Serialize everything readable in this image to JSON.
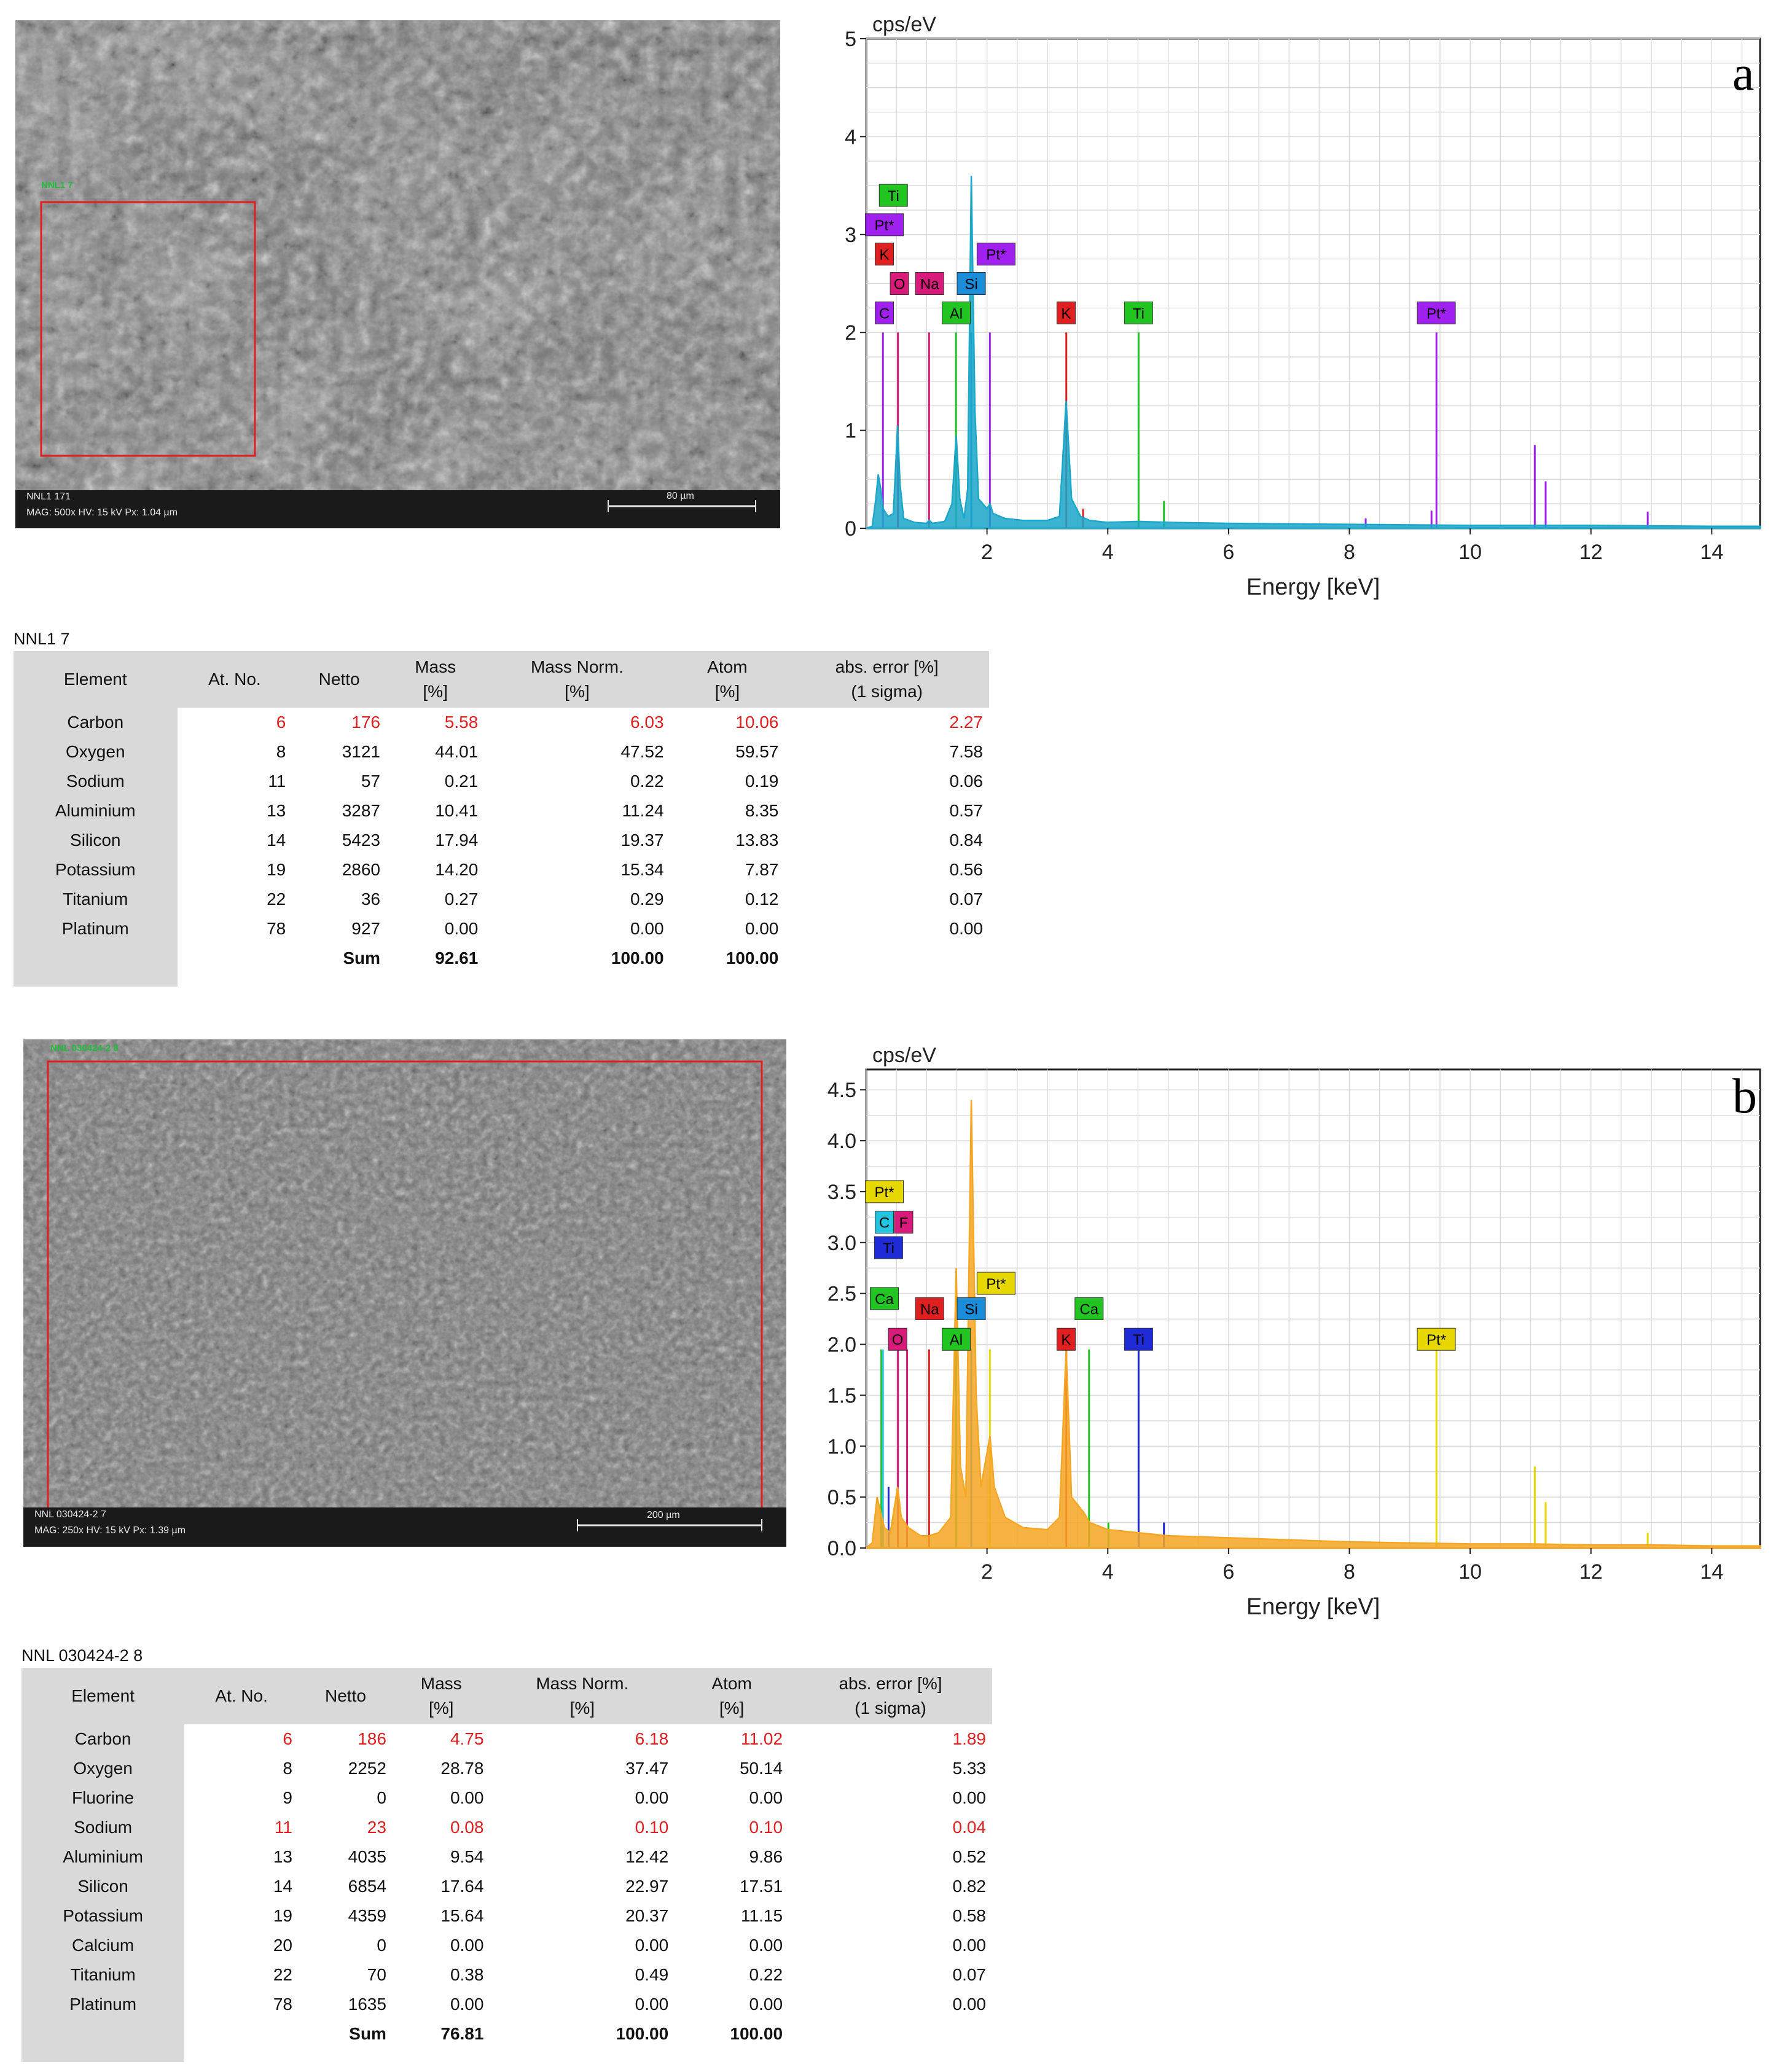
{
  "panel_a": {
    "letter": "a",
    "sem": {
      "roi_label": "NNL1 7",
      "info_line1": "NNL1 171",
      "info_line2": "MAG: 500x   HV: 15 kV   Px: 1.04 µm",
      "scale_label": "80 µm"
    },
    "table": {
      "title": "NNL1 7",
      "headers": [
        "Element",
        "At. No.",
        "Netto",
        "Mass\n[%]",
        "Mass Norm.\n[%]",
        "Atom\n[%]",
        "abs. error [%]\n(1 sigma)"
      ],
      "rows": [
        {
          "element": "Carbon",
          "at_no": "6",
          "netto": "176",
          "mass": "5.58",
          "mass_norm": "6.03",
          "atom": "10.06",
          "error": "2.27",
          "flag": "red"
        },
        {
          "element": "Oxygen",
          "at_no": "8",
          "netto": "3121",
          "mass": "44.01",
          "mass_norm": "47.52",
          "atom": "59.57",
          "error": "7.58",
          "flag": ""
        },
        {
          "element": "Sodium",
          "at_no": "11",
          "netto": "57",
          "mass": "0.21",
          "mass_norm": "0.22",
          "atom": "0.19",
          "error": "0.06",
          "flag": ""
        },
        {
          "element": "Aluminium",
          "at_no": "13",
          "netto": "3287",
          "mass": "10.41",
          "mass_norm": "11.24",
          "atom": "8.35",
          "error": "0.57",
          "flag": ""
        },
        {
          "element": "Silicon",
          "at_no": "14",
          "netto": "5423",
          "mass": "17.94",
          "mass_norm": "19.37",
          "atom": "13.83",
          "error": "0.84",
          "flag": ""
        },
        {
          "element": "Potassium",
          "at_no": "19",
          "netto": "2860",
          "mass": "14.20",
          "mass_norm": "15.34",
          "atom": "7.87",
          "error": "0.56",
          "flag": ""
        },
        {
          "element": "Titanium",
          "at_no": "22",
          "netto": "36",
          "mass": "0.27",
          "mass_norm": "0.29",
          "atom": "0.12",
          "error": "0.07",
          "flag": ""
        },
        {
          "element": "Platinum",
          "at_no": "78",
          "netto": "927",
          "mass": "0.00",
          "mass_norm": "0.00",
          "atom": "0.00",
          "error": "0.00",
          "flag": ""
        }
      ],
      "sum": {
        "label": "Sum",
        "mass": "92.61",
        "mass_norm": "100.00",
        "atom": "100.00"
      }
    }
  },
  "panel_b": {
    "letter": "b",
    "sem": {
      "roi_label": "NNL 030424-2 8",
      "info_line1": "NNL 030424-2 7",
      "info_line2": "MAG: 250x   HV: 15 kV   Px: 1.39 µm",
      "scale_label": "200 µm"
    },
    "table": {
      "title": "NNL 030424-2 8",
      "headers": [
        "Element",
        "At. No.",
        "Netto",
        "Mass\n[%]",
        "Mass Norm.\n[%]",
        "Atom\n[%]",
        "abs. error [%]\n(1 sigma)"
      ],
      "rows": [
        {
          "element": "Carbon",
          "at_no": "6",
          "netto": "186",
          "mass": "4.75",
          "mass_norm": "6.18",
          "atom": "11.02",
          "error": "1.89",
          "flag": "red"
        },
        {
          "element": "Oxygen",
          "at_no": "8",
          "netto": "2252",
          "mass": "28.78",
          "mass_norm": "37.47",
          "atom": "50.14",
          "error": "5.33",
          "flag": ""
        },
        {
          "element": "Fluorine",
          "at_no": "9",
          "netto": "0",
          "mass": "0.00",
          "mass_norm": "0.00",
          "atom": "0.00",
          "error": "0.00",
          "flag": ""
        },
        {
          "element": "Sodium",
          "at_no": "11",
          "netto": "23",
          "mass": "0.08",
          "mass_norm": "0.10",
          "atom": "0.10",
          "error": "0.04",
          "flag": "red"
        },
        {
          "element": "Aluminium",
          "at_no": "13",
          "netto": "4035",
          "mass": "9.54",
          "mass_norm": "12.42",
          "atom": "9.86",
          "error": "0.52",
          "flag": ""
        },
        {
          "element": "Silicon",
          "at_no": "14",
          "netto": "6854",
          "mass": "17.64",
          "mass_norm": "22.97",
          "atom": "17.51",
          "error": "0.82",
          "flag": ""
        },
        {
          "element": "Potassium",
          "at_no": "19",
          "netto": "4359",
          "mass": "15.64",
          "mass_norm": "20.37",
          "atom": "11.15",
          "error": "0.58",
          "flag": ""
        },
        {
          "element": "Calcium",
          "at_no": "20",
          "netto": "0",
          "mass": "0.00",
          "mass_norm": "0.00",
          "atom": "0.00",
          "error": "0.00",
          "flag": ""
        },
        {
          "element": "Titanium",
          "at_no": "22",
          "netto": "70",
          "mass": "0.38",
          "mass_norm": "0.49",
          "atom": "0.22",
          "error": "0.07",
          "flag": ""
        },
        {
          "element": "Platinum",
          "at_no": "78",
          "netto": "1635",
          "mass": "0.00",
          "mass_norm": "0.00",
          "atom": "0.00",
          "error": "0.00",
          "flag": ""
        }
      ],
      "sum": {
        "label": "Sum",
        "mass": "76.81",
        "mass_norm": "100.00",
        "atom": "100.00"
      }
    }
  },
  "chart_data": [
    {
      "type": "line",
      "panel": "a",
      "ylabel": "cps/eV",
      "xlabel": "Energy [keV]",
      "xlim": [
        0,
        14.8
      ],
      "ylim": [
        0,
        5
      ],
      "xticks": [
        2,
        4,
        6,
        8,
        10,
        12,
        14
      ],
      "yticks": [
        0,
        1,
        2,
        3,
        4,
        5
      ],
      "grid": true,
      "spectrum_color": "#1aa7c9",
      "spectrum": [
        [
          0.0,
          0.0
        ],
        [
          0.1,
          0.02
        ],
        [
          0.16,
          0.3
        ],
        [
          0.2,
          0.55
        ],
        [
          0.24,
          0.4
        ],
        [
          0.28,
          0.2
        ],
        [
          0.36,
          0.12
        ],
        [
          0.45,
          0.15
        ],
        [
          0.52,
          1.05
        ],
        [
          0.56,
          0.45
        ],
        [
          0.62,
          0.1
        ],
        [
          0.8,
          0.06
        ],
        [
          1.0,
          0.05
        ],
        [
          1.04,
          0.08
        ],
        [
          1.1,
          0.05
        ],
        [
          1.3,
          0.07
        ],
        [
          1.42,
          0.25
        ],
        [
          1.49,
          0.95
        ],
        [
          1.55,
          0.3
        ],
        [
          1.62,
          0.1
        ],
        [
          1.68,
          0.4
        ],
        [
          1.74,
          3.6
        ],
        [
          1.8,
          1.2
        ],
        [
          1.86,
          0.3
        ],
        [
          2.0,
          0.2
        ],
        [
          2.05,
          0.25
        ],
        [
          2.1,
          0.15
        ],
        [
          2.3,
          0.1
        ],
        [
          2.6,
          0.08
        ],
        [
          3.0,
          0.08
        ],
        [
          3.2,
          0.12
        ],
        [
          3.31,
          1.3
        ],
        [
          3.4,
          0.3
        ],
        [
          3.55,
          0.12
        ],
        [
          3.7,
          0.08
        ],
        [
          4.0,
          0.06
        ],
        [
          4.51,
          0.07
        ],
        [
          5.0,
          0.06
        ],
        [
          6.0,
          0.05
        ],
        [
          8.0,
          0.04
        ],
        [
          10.0,
          0.03
        ],
        [
          12.0,
          0.03
        ],
        [
          14.0,
          0.02
        ],
        [
          14.8,
          0.02
        ]
      ],
      "element_lines": [
        {
          "element": "C",
          "energy": 0.277,
          "height": 2.0,
          "color": "#a020f0"
        },
        {
          "element": "O",
          "energy": 0.525,
          "height": 2.0,
          "color": "#d81b7a"
        },
        {
          "element": "Na",
          "energy": 1.041,
          "height": 2.0,
          "color": "#d81b7a"
        },
        {
          "element": "Al",
          "energy": 1.487,
          "height": 2.0,
          "color": "#22c422"
        },
        {
          "element": "Si",
          "energy": 1.74,
          "height": 2.0,
          "color": "#1a8cd8"
        },
        {
          "element": "Pt",
          "energy": 2.048,
          "height": 2.0,
          "color": "#a020f0"
        },
        {
          "element": "K",
          "energy": 3.313,
          "height": 2.0,
          "color": "#e02020"
        },
        {
          "element": "Ti",
          "energy": 4.51,
          "height": 2.0,
          "color": "#22c422"
        },
        {
          "element": "Pt",
          "energy": 9.442,
          "height": 2.0,
          "color": "#a020f0"
        },
        {
          "element": "Pt",
          "energy": 11.07,
          "height": 0.85,
          "color": "#a020f0"
        },
        {
          "element": "Pt",
          "energy": 11.25,
          "height": 0.48,
          "color": "#a020f0"
        },
        {
          "element": "Pt",
          "energy": 12.94,
          "height": 0.17,
          "color": "#a020f0"
        },
        {
          "element": "Pt",
          "energy": 9.36,
          "height": 0.18,
          "color": "#a020f0"
        },
        {
          "element": "Pt",
          "energy": 8.27,
          "height": 0.1,
          "color": "#a020f0"
        },
        {
          "element": "K",
          "energy": 3.59,
          "height": 0.2,
          "color": "#e02020"
        },
        {
          "element": "Ti",
          "energy": 4.93,
          "height": 0.28,
          "color": "#22c422"
        }
      ],
      "labels": [
        {
          "text": "Ti",
          "energy": 0.45,
          "y": 3.4,
          "color": "#22c422"
        },
        {
          "text": "Pt*",
          "energy": 0.3,
          "y": 3.1,
          "color": "#a020f0"
        },
        {
          "text": "K",
          "energy": 0.3,
          "y": 2.8,
          "color": "#e02020"
        },
        {
          "text": "O",
          "energy": 0.55,
          "y": 2.5,
          "color": "#d81b7a"
        },
        {
          "text": "Na",
          "energy": 1.05,
          "y": 2.5,
          "color": "#d81b7a"
        },
        {
          "text": "Si",
          "energy": 1.74,
          "y": 2.5,
          "color": "#1a8cd8"
        },
        {
          "text": "Pt*",
          "energy": 2.15,
          "y": 2.8,
          "color": "#a020f0"
        },
        {
          "text": "C",
          "energy": 0.3,
          "y": 2.2,
          "color": "#a020f0"
        },
        {
          "text": "Al",
          "energy": 1.49,
          "y": 2.2,
          "color": "#22c422"
        },
        {
          "text": "K",
          "energy": 3.31,
          "y": 2.2,
          "color": "#e02020"
        },
        {
          "text": "Ti",
          "energy": 4.51,
          "y": 2.2,
          "color": "#22c422"
        },
        {
          "text": "Pt*",
          "energy": 9.44,
          "y": 2.2,
          "color": "#a020f0"
        }
      ]
    },
    {
      "type": "line",
      "panel": "b",
      "ylabel": "cps/eV",
      "xlabel": "Energy [keV]",
      "xlim": [
        0,
        14.8
      ],
      "ylim": [
        0,
        4.7
      ],
      "xticks": [
        2,
        4,
        6,
        8,
        10,
        12,
        14
      ],
      "yticks": [
        0.0,
        0.5,
        1.0,
        1.5,
        2.0,
        2.5,
        3.0,
        3.5,
        4.0,
        4.5
      ],
      "grid": true,
      "spectrum_color": "#f5a623",
      "spectrum": [
        [
          0.0,
          0.0
        ],
        [
          0.1,
          0.05
        ],
        [
          0.18,
          0.5
        ],
        [
          0.24,
          0.35
        ],
        [
          0.3,
          0.2
        ],
        [
          0.4,
          0.15
        ],
        [
          0.52,
          0.6
        ],
        [
          0.58,
          0.3
        ],
        [
          0.7,
          0.2
        ],
        [
          0.9,
          0.12
        ],
        [
          1.04,
          0.12
        ],
        [
          1.2,
          0.15
        ],
        [
          1.4,
          0.3
        ],
        [
          1.49,
          2.75
        ],
        [
          1.56,
          0.8
        ],
        [
          1.65,
          0.5
        ],
        [
          1.74,
          4.4
        ],
        [
          1.82,
          1.5
        ],
        [
          1.9,
          0.6
        ],
        [
          2.05,
          1.1
        ],
        [
          2.12,
          0.6
        ],
        [
          2.3,
          0.3
        ],
        [
          2.6,
          0.2
        ],
        [
          3.0,
          0.18
        ],
        [
          3.2,
          0.3
        ],
        [
          3.31,
          1.95
        ],
        [
          3.4,
          0.5
        ],
        [
          3.6,
          0.35
        ],
        [
          3.7,
          0.25
        ],
        [
          4.0,
          0.18
        ],
        [
          4.5,
          0.15
        ],
        [
          5.0,
          0.12
        ],
        [
          6.0,
          0.1
        ],
        [
          7.0,
          0.08
        ],
        [
          8.0,
          0.06
        ],
        [
          9.0,
          0.05
        ],
        [
          10.0,
          0.04
        ],
        [
          11.0,
          0.04
        ],
        [
          12.0,
          0.03
        ],
        [
          13.0,
          0.03
        ],
        [
          14.0,
          0.02
        ],
        [
          14.8,
          0.02
        ]
      ],
      "element_lines": [
        {
          "element": "Ca",
          "energy": 0.25,
          "height": 1.95,
          "color": "#22c422"
        },
        {
          "element": "C",
          "energy": 0.277,
          "height": 1.95,
          "color": "#22c4e0"
        },
        {
          "element": "Ti",
          "energy": 0.37,
          "height": 0.6,
          "color": "#1f2bd6"
        },
        {
          "element": "O",
          "energy": 0.525,
          "height": 1.95,
          "color": "#d81b7a"
        },
        {
          "element": "F",
          "energy": 0.677,
          "height": 1.95,
          "color": "#d81b7a"
        },
        {
          "element": "Na",
          "energy": 1.041,
          "height": 1.95,
          "color": "#e02020"
        },
        {
          "element": "Al",
          "energy": 1.487,
          "height": 1.95,
          "color": "#22c422"
        },
        {
          "element": "Si",
          "energy": 1.74,
          "height": 1.95,
          "color": "#1a8cd8"
        },
        {
          "element": "Pt",
          "energy": 2.048,
          "height": 1.95,
          "color": "#e6d800"
        },
        {
          "element": "K",
          "energy": 3.313,
          "height": 1.95,
          "color": "#e02020"
        },
        {
          "element": "Ca",
          "energy": 3.69,
          "height": 1.95,
          "color": "#22c422"
        },
        {
          "element": "Ti",
          "energy": 4.51,
          "height": 1.95,
          "color": "#1f2bd6"
        },
        {
          "element": "Ti",
          "energy": 4.93,
          "height": 0.25,
          "color": "#1f2bd6"
        },
        {
          "element": "Ca",
          "energy": 4.01,
          "height": 0.25,
          "color": "#22c422"
        },
        {
          "element": "Pt",
          "energy": 9.442,
          "height": 1.95,
          "color": "#e6d800"
        },
        {
          "element": "Pt",
          "energy": 11.07,
          "height": 0.8,
          "color": "#e6d800"
        },
        {
          "element": "Pt",
          "energy": 11.25,
          "height": 0.45,
          "color": "#e6d800"
        },
        {
          "element": "Pt",
          "energy": 12.94,
          "height": 0.15,
          "color": "#e6d800"
        }
      ],
      "labels": [
        {
          "text": "Pt*",
          "energy": 0.3,
          "y": 3.5,
          "color": "#e6d800"
        },
        {
          "text": "C",
          "energy": 0.3,
          "y": 3.2,
          "color": "#22c4e0"
        },
        {
          "text": "F",
          "energy": 0.62,
          "y": 3.2,
          "color": "#d81b7a"
        },
        {
          "text": "Ti",
          "energy": 0.37,
          "y": 2.95,
          "color": "#1f2bd6"
        },
        {
          "text": "Pt*",
          "energy": 2.15,
          "y": 2.6,
          "color": "#e6d800"
        },
        {
          "text": "Ca",
          "energy": 0.3,
          "y": 2.45,
          "color": "#22c422"
        },
        {
          "text": "Na",
          "energy": 1.05,
          "y": 2.35,
          "color": "#e02020"
        },
        {
          "text": "Si",
          "energy": 1.74,
          "y": 2.35,
          "color": "#1a8cd8"
        },
        {
          "text": "Ca",
          "energy": 3.69,
          "y": 2.35,
          "color": "#22c422"
        },
        {
          "text": "O",
          "energy": 0.52,
          "y": 2.05,
          "color": "#d81b7a"
        },
        {
          "text": "Al",
          "energy": 1.49,
          "y": 2.05,
          "color": "#22c422"
        },
        {
          "text": "K",
          "energy": 3.31,
          "y": 2.05,
          "color": "#e02020"
        },
        {
          "text": "Ti",
          "energy": 4.51,
          "y": 2.05,
          "color": "#1f2bd6"
        },
        {
          "text": "Pt*",
          "energy": 9.44,
          "y": 2.05,
          "color": "#e6d800"
        }
      ]
    }
  ]
}
